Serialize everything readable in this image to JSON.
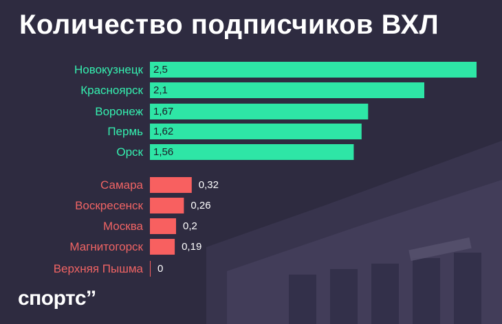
{
  "title": "Количество подписчиков ВХЛ",
  "logo": "спортс’’",
  "colors": {
    "background": "#2e2b40",
    "top_group": "#2ee6a6",
    "top_label": "#35f0b0",
    "bottom_group": "#f86060",
    "bottom_label": "#f06464",
    "value_text_inside": "#1d1b28",
    "value_text_outside": "#ffffff"
  },
  "chart_data": {
    "type": "bar",
    "orientation": "horizontal",
    "title": "Количество подписчиков ВХЛ",
    "categories": [
      "Новокузнецк",
      "Красноярск",
      "Воронеж",
      "Пермь",
      "Орск",
      "Самара",
      "Воскресенск",
      "Москва",
      "Магнитогорск",
      "Верхняя Пышма"
    ],
    "values": [
      2.5,
      2.1,
      1.67,
      1.62,
      1.56,
      0.32,
      0.26,
      0.2,
      0.19,
      0
    ],
    "value_labels": [
      "2,5",
      "2,1",
      "1,67",
      "1,62",
      "1,56",
      "0,32",
      "0,26",
      "0,2",
      "0,19",
      "0"
    ],
    "groups": [
      "top",
      "top",
      "top",
      "top",
      "top",
      "bottom",
      "bottom",
      "bottom",
      "bottom",
      "bottom"
    ],
    "xlim": [
      0,
      2.5
    ],
    "grid": false,
    "legend": "none"
  }
}
